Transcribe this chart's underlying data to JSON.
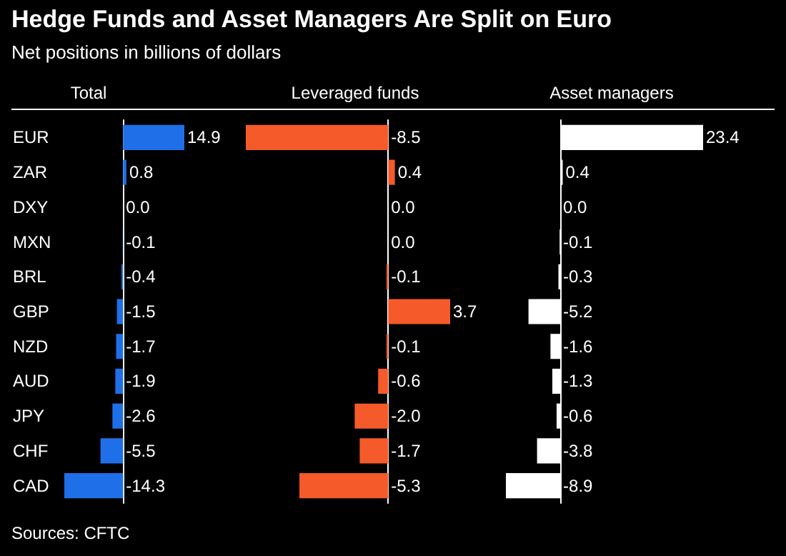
{
  "chart_data": [
    {
      "type": "bar",
      "orientation": "horizontal",
      "title": "Hedge Funds and Asset Managers Are Split on Euro",
      "subtitle": "Net positions in billions of dollars",
      "xlabel": "Total",
      "annotations": [
        "Sources: CFTC"
      ],
      "tick_labels": "y",
      "categories": [
        "EUR",
        "ZAR",
        "DXY",
        "MXN",
        "BRL",
        "GBP",
        "NZD",
        "AUD",
        "JPY",
        "CHF",
        "CAD"
      ],
      "color": "#1f6fe8",
      "values": [
        14.9,
        0.8,
        0.0,
        -0.1,
        -0.4,
        -1.5,
        -1.7,
        -1.9,
        -2.6,
        -5.5,
        -14.3
      ],
      "value_labels": [
        "14.9",
        "0.8",
        "0.0",
        "-0.1",
        "-0.4",
        "-1.5",
        "-1.7",
        "-1.9",
        "-2.6",
        "-5.5",
        "-14.3"
      ]
    },
    {
      "type": "bar",
      "orientation": "horizontal",
      "xlabel": "Leveraged funds",
      "tick_labels": false,
      "categories": [
        null,
        null,
        null,
        null,
        null,
        null,
        null,
        null,
        null,
        null,
        null
      ],
      "color": "#f45a2a",
      "values": [
        -8.5,
        0.4,
        0.0,
        0.0,
        -0.1,
        3.7,
        -0.1,
        -0.6,
        -2.0,
        -1.7,
        -5.3
      ],
      "value_labels": [
        "-8.5",
        "0.4",
        "0.0",
        "0.0",
        "-0.1",
        "3.7",
        "-0.1",
        "-0.6",
        "-2.0",
        "-1.7",
        "-5.3"
      ]
    },
    {
      "type": "bar",
      "orientation": "horizontal",
      "xlabel": "Asset managers",
      "tick_labels": false,
      "categories": [
        null,
        null,
        null,
        null,
        null,
        null,
        null,
        null,
        null,
        null,
        null
      ],
      "color": "#ffffff",
      "values": [
        23.4,
        0.4,
        0.0,
        -0.1,
        -0.3,
        -5.2,
        -1.6,
        -1.3,
        -0.6,
        -3.8,
        -8.9
      ],
      "value_labels": [
        "23.4",
        "0.4",
        "0.0",
        "-0.1",
        "-0.3",
        "-5.2",
        "-1.6",
        "-1.3",
        "-0.6",
        "-3.8",
        "-8.9"
      ]
    }
  ]
}
